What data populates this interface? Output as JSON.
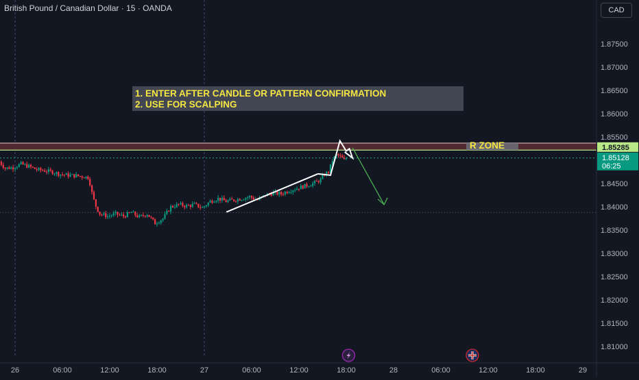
{
  "header": {
    "title": "British Pound / Canadian Dollar · 15 · OANDA",
    "currency": "CAD"
  },
  "colors": {
    "background": "#131722",
    "up": "#089981",
    "down": "#f23645",
    "annotation_text": "#f5e642",
    "zone_fill": "#5a2a33",
    "arrow_green": "#4caf50",
    "price_label_bg": "#089981"
  },
  "annotations": {
    "instructions": [
      "1. ENTER AFTER CANDLE OR PATTERN CONFIRMATION",
      "2. USE FOR SCALPING"
    ],
    "zone_label": "R ZONE"
  },
  "price_labels": {
    "zone_price": "1.85285",
    "last_price": "1.85128",
    "countdown": "06:25"
  },
  "event_icons": [
    "lightning-icon",
    "uk-flag-icon"
  ],
  "chart_data": {
    "type": "candlestick",
    "title": "British Pound / Canadian Dollar · 15 · OANDA",
    "xlabel": "",
    "ylabel": "",
    "ylim": [
      1.8065,
      1.8815
    ],
    "y_ticks": [
      "1.87500",
      "1.87000",
      "1.86500",
      "1.86000",
      "1.85500",
      "1.85000",
      "1.84500",
      "1.84000",
      "1.83500",
      "1.83000",
      "1.82500",
      "1.82000",
      "1.81500",
      "1.81000"
    ],
    "x_ticks": [
      {
        "label": "26",
        "t": 0
      },
      {
        "label": "06:00",
        "t": 6
      },
      {
        "label": "12:00",
        "t": 12
      },
      {
        "label": "18:00",
        "t": 18
      },
      {
        "label": "27",
        "t": 24
      },
      {
        "label": "06:00",
        "t": 30
      },
      {
        "label": "12:00",
        "t": 36
      },
      {
        "label": "18:00",
        "t": 42
      },
      {
        "label": "28",
        "t": 48
      },
      {
        "label": "06:00",
        "t": 54
      },
      {
        "label": "12:00",
        "t": 60
      },
      {
        "label": "18:00",
        "t": 66
      },
      {
        "label": "29",
        "t": 72
      }
    ],
    "session_breaks_t": [
      0,
      24
    ],
    "price_path": [
      [
        -2.0,
        1.8502
      ],
      [
        -1.0,
        1.8483
      ],
      [
        0.0,
        1.8485
      ],
      [
        1.0,
        1.8492
      ],
      [
        2.0,
        1.8487
      ],
      [
        3.0,
        1.848
      ],
      [
        4.0,
        1.8478
      ],
      [
        5.0,
        1.8475
      ],
      [
        6.0,
        1.847
      ],
      [
        7.0,
        1.8468
      ],
      [
        8.0,
        1.8467
      ],
      [
        9.0,
        1.8465
      ],
      [
        9.6,
        1.8463
      ],
      [
        10.0,
        1.843
      ],
      [
        10.4,
        1.8405
      ],
      [
        11.0,
        1.8385
      ],
      [
        12.0,
        1.838
      ],
      [
        13.0,
        1.8385
      ],
      [
        14.0,
        1.838
      ],
      [
        15.0,
        1.8388
      ],
      [
        16.0,
        1.8378
      ],
      [
        17.0,
        1.8385
      ],
      [
        18.0,
        1.8365
      ],
      [
        19.0,
        1.8375
      ],
      [
        20.0,
        1.84
      ],
      [
        21.0,
        1.8405
      ],
      [
        22.0,
        1.8402
      ],
      [
        23.0,
        1.8405
      ],
      [
        24.0,
        1.8398
      ],
      [
        25.0,
        1.8412
      ],
      [
        26.0,
        1.8418
      ],
      [
        27.0,
        1.8412
      ],
      [
        28.0,
        1.8415
      ],
      [
        29.0,
        1.8418
      ],
      [
        30.0,
        1.8422
      ],
      [
        31.0,
        1.8415
      ],
      [
        32.0,
        1.8425
      ],
      [
        33.0,
        1.843
      ],
      [
        34.0,
        1.8428
      ],
      [
        35.0,
        1.8435
      ],
      [
        36.0,
        1.844
      ],
      [
        37.0,
        1.8445
      ],
      [
        38.0,
        1.845
      ],
      [
        39.0,
        1.8458
      ],
      [
        39.5,
        1.847
      ],
      [
        40.0,
        1.8475
      ],
      [
        40.5,
        1.85
      ],
      [
        41.0,
        1.8512
      ],
      [
        41.5,
        1.8508
      ],
      [
        42.0,
        1.85
      ],
      [
        42.2,
        1.8505
      ]
    ],
    "drawings": {
      "resistance_zone": [
        1.8522,
        1.8537
      ],
      "support_line_price": 1.8388,
      "wedge_lower": [
        [
          26.8,
          1.8389
        ],
        [
          38.4,
          1.8471
        ]
      ],
      "wedge_upper": [
        [
          38.4,
          1.8471
        ],
        [
          40.0,
          1.8468
        ],
        [
          41.2,
          1.8542
        ],
        [
          42.0,
          1.852
        ],
        [
          42.4,
          1.8525
        ],
        [
          42.8,
          1.8505
        ],
        [
          41.8,
          1.8518
        ]
      ],
      "projection_arrow": [
        [
          42.8,
          1.8527
        ],
        [
          46.8,
          1.8405
        ]
      ]
    },
    "grid": false,
    "legend": "none"
  }
}
